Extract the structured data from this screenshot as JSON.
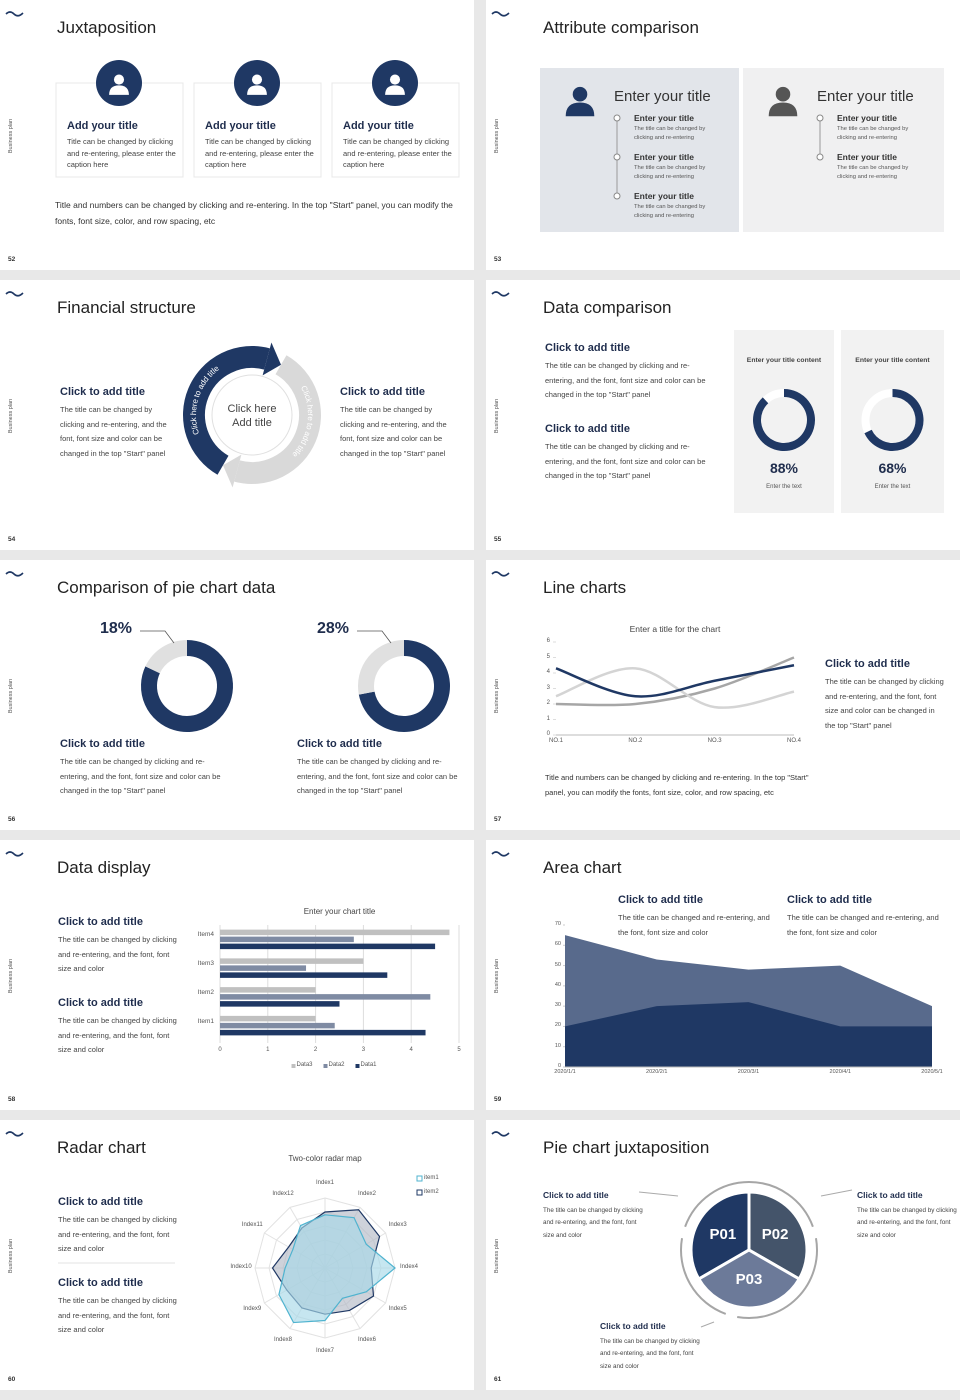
{
  "side_label": "Business plan",
  "slides": [
    {
      "number": "52",
      "title": "Juxtaposition",
      "cards": [
        {
          "title": "Add your title",
          "text": "Title can be changed by clicking and re-entering, please enter the caption here"
        },
        {
          "title": "Add your title",
          "text": "Title can be changed by clicking and re-entering, please enter the caption here"
        },
        {
          "title": "Add your title",
          "text": "Title can be changed by clicking and re-entering, please enter the caption here"
        }
      ],
      "footer": "Title and numbers can be changed by clicking and re-entering. In the top \"Start\" panel, you can modify the fonts, font size, color, and row spacing, etc"
    },
    {
      "number": "53",
      "title": "Attribute comparison",
      "panels": [
        {
          "title": "Enter your title",
          "items": [
            {
              "title": "Enter your title",
              "text": "The title can be changed by clicking and re-entering"
            },
            {
              "title": "Enter your title",
              "text": "The title can be changed by clicking and re-entering"
            },
            {
              "title": "Enter your title",
              "text": "The title can be changed by clicking and re-entering"
            }
          ]
        },
        {
          "title": "Enter your title",
          "items": [
            {
              "title": "Enter your title",
              "text": "The title can be changed by clicking and re-entering"
            },
            {
              "title": "Enter your title",
              "text": "The title can be changed by clicking and re-entering"
            }
          ]
        }
      ]
    },
    {
      "number": "54",
      "title": "Financial structure",
      "blocks": [
        {
          "title": "Click to add title",
          "text": "The title can be changed by clicking and re-entering, and the font, font size and color can be changed in the top \"Start\" panel"
        },
        {
          "title": "Click to add title",
          "text": "The title can be changed by clicking and re-entering, and the font, font size and color can be changed in the top \"Start\" panel"
        }
      ],
      "center": "Click here Add title",
      "arcs": [
        "Click here to add title",
        "Click here to add title"
      ]
    },
    {
      "number": "55",
      "title": "Data comparison",
      "blocks": [
        {
          "title": "Click to add title",
          "text": "The title can be changed by clicking and re-entering, and the font, font size and color can be changed in the top \"Start\" panel"
        },
        {
          "title": "Click to add title",
          "text": "The title can be changed by clicking and re-entering, and the font, font size and color can be changed in the top \"Start\" panel"
        }
      ],
      "donuts": [
        {
          "header": "Enter your title content",
          "value": 88,
          "value_label": "88%",
          "caption": "Enter the text"
        },
        {
          "header": "Enter your title content",
          "value": 68,
          "value_label": "68%",
          "caption": "Enter the text"
        }
      ]
    },
    {
      "number": "56",
      "title": "Comparison of pie chart data",
      "donuts": [
        {
          "value": 18,
          "value_label": "18%"
        },
        {
          "value": 28,
          "value_label": "28%"
        }
      ],
      "blocks": [
        {
          "title": "Click to add title",
          "text": "The title can be changed by clicking and re-entering, and the font, font size and color can be changed in the top \"Start\" panel"
        },
        {
          "title": "Click to add title",
          "text": "The title can be changed by clicking and re-entering, and the font, font size and color can be changed in the top \"Start\" panel"
        }
      ]
    },
    {
      "number": "57",
      "title": "Line charts",
      "chart": {
        "type": "line",
        "title": "Enter a title for the chart",
        "categories": [
          "NO.1",
          "NO.2",
          "NO.3",
          "NO.4"
        ],
        "series": [
          {
            "color": "#1f3864",
            "values": [
              4.3,
              2.5,
              3.5,
              4.5
            ]
          },
          {
            "color": "#d4d4d4",
            "values": [
              2.5,
              4.3,
              1.8,
              2.8
            ]
          },
          {
            "color": "#a6a6a6",
            "values": [
              2,
              2,
              3,
              5
            ]
          }
        ],
        "ylim": [
          0,
          6
        ],
        "yticks": [
          0,
          1,
          2,
          3,
          4,
          5,
          6
        ],
        "grid": false
      },
      "blocks": [
        {
          "title": "Click to add title",
          "text": "The title can be changed by clicking and re-entering, and the font, font size and color can be changed in the top \"Start\" panel"
        }
      ],
      "footer": "Title and numbers can be changed by clicking and re-entering. In the top \"Start\" panel, you can modify the fonts, font size, color, and row spacing, etc"
    },
    {
      "number": "58",
      "title": "Data display",
      "chart": {
        "type": "bar",
        "title": "Enter your chart title",
        "categories": [
          "Item1",
          "Item2",
          "Item3",
          "Item4"
        ],
        "series": [
          {
            "name": "Data1",
            "color": "#1f3864",
            "values": [
              4.3,
              2.5,
              3.5,
              4.5
            ]
          },
          {
            "name": "Data2",
            "color": "#7f8ba3",
            "values": [
              2.4,
              4.4,
              1.8,
              2.8
            ]
          },
          {
            "name": "Data3",
            "color": "#c0c0c0",
            "values": [
              2,
              2,
              3,
              4.8
            ]
          }
        ],
        "xlim": [
          0,
          5
        ],
        "xticks": [
          0,
          1,
          2,
          3,
          4,
          5
        ],
        "grid": true,
        "legend": "bottom"
      },
      "blocks": [
        {
          "title": "Click to add title",
          "text": "The title can be changed by clicking and re-entering, and the font, font size and color"
        },
        {
          "title": "Click to add title",
          "text": "The title can be changed by clicking and re-entering, and the font, font size and color"
        }
      ]
    },
    {
      "number": "59",
      "title": "Area chart",
      "chart": {
        "type": "area",
        "x": [
          "2020/1/1",
          "2020/2/1",
          "2020/3/1",
          "2020/4/1",
          "2020/5/1"
        ],
        "series": [
          {
            "color": "#586a8c",
            "values": [
              65,
              53,
              48,
              50,
              30
            ]
          },
          {
            "color": "#1f3864",
            "values": [
              20,
              30,
              32,
              20,
              20
            ]
          }
        ],
        "ylim": [
          0,
          70
        ],
        "yticks": [
          0,
          10,
          20,
          30,
          40,
          50,
          60,
          70
        ]
      },
      "blocks": [
        {
          "title": "Click to add title",
          "text": "The title can be changed and re-entering, and the font, font size and color"
        },
        {
          "title": "Click to add title",
          "text": "The title can be changed and re-entering, and the font, font size and color"
        }
      ]
    },
    {
      "number": "60",
      "title": "Radar chart",
      "chart": {
        "type": "radar",
        "title": "Two-color radar map",
        "categories": [
          "Index1",
          "Index2",
          "Index3",
          "Index4",
          "Index5",
          "Index6",
          "Index7",
          "Index8",
          "Index9",
          "Index10",
          "Index11",
          "Index12"
        ],
        "series": [
          {
            "name": "item1",
            "color": "#4fb3cf",
            "fill": "#a8d8e8",
            "values": [
              7.6,
              8.3,
              6.8,
              10,
              6.8,
              5,
              7.5,
              9,
              7.6,
              5.7,
              5.3,
              7
            ]
          },
          {
            "name": "item2",
            "color": "#1f3864",
            "fill": "#b4bac6",
            "values": [
              8,
              9.6,
              9,
              6.6,
              8,
              7,
              6.6,
              6.6,
              6.3,
              7.5,
              6,
              6.6
            ]
          }
        ],
        "rlim": [
          0,
          10
        ],
        "legend": "top-right"
      },
      "blocks": [
        {
          "title": "Click to add title",
          "text": "The title can be changed by clicking and re-entering, and the font, font size and color"
        },
        {
          "title": "Click to add title",
          "text": "The title can be changed by clicking and re-entering, and the font, font size and color"
        }
      ]
    },
    {
      "number": "61",
      "title": "Pie chart juxtaposition",
      "segments": [
        "P01",
        "P02",
        "P03"
      ],
      "blocks": [
        {
          "title": "Click to add title",
          "text": "The title can be changed by clicking and re-entering, and the font, font size and color"
        },
        {
          "title": "Click to add title",
          "text": "The title can be changed by clicking and re-entering, and the font, font size and color"
        },
        {
          "title": "Click to add title",
          "text": "The title can be changed by clicking and re-entering, and the font, font size and color"
        }
      ]
    }
  ]
}
